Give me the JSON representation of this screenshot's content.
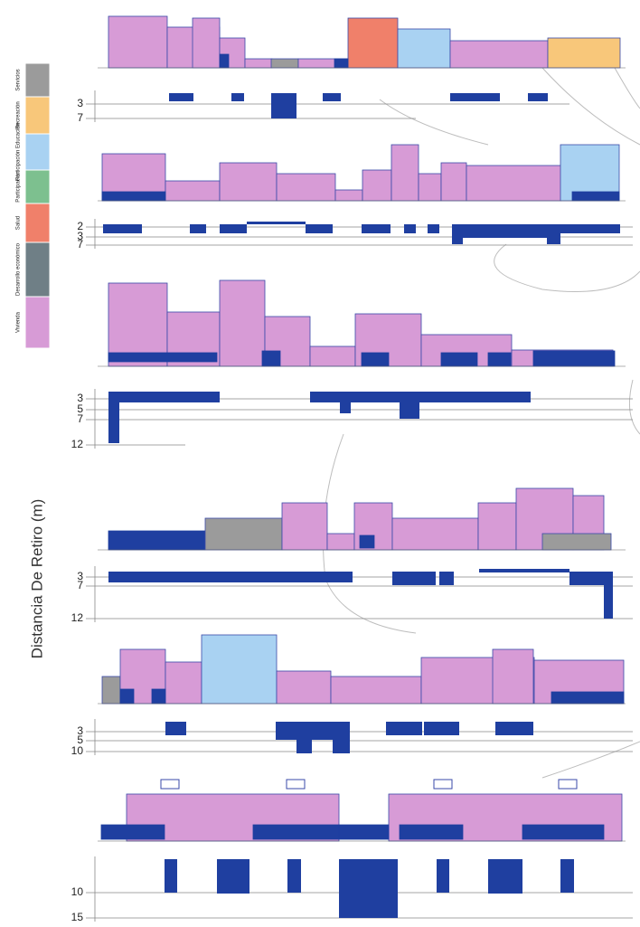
{
  "legend": [
    {
      "label": "Servicios",
      "color": "#9b9b9b"
    },
    {
      "label": "Recreación",
      "color": "#f8c77a"
    },
    {
      "label": "Participación Educación",
      "color": "#a9d2f2"
    },
    {
      "label": "Participación",
      "color": "#7dc08f"
    },
    {
      "label": "Salud",
      "color": "#f0806a"
    },
    {
      "label": "Desarrollo económico",
      "color": "#6f7f86"
    },
    {
      "label": "Vivienda",
      "color": "#d79bd6"
    }
  ],
  "axis_label": "Distancia De Retiro (m)",
  "strips": [
    {
      "ticks": [
        3,
        7
      ]
    },
    {
      "ticks": [
        2,
        3,
        7
      ]
    },
    {
      "ticks": [
        3,
        5,
        7,
        12
      ]
    },
    {
      "ticks": [
        3,
        7,
        12
      ]
    },
    {
      "ticks": [
        3,
        5,
        10
      ]
    },
    {
      "ticks": [
        10,
        15
      ]
    }
  ]
}
